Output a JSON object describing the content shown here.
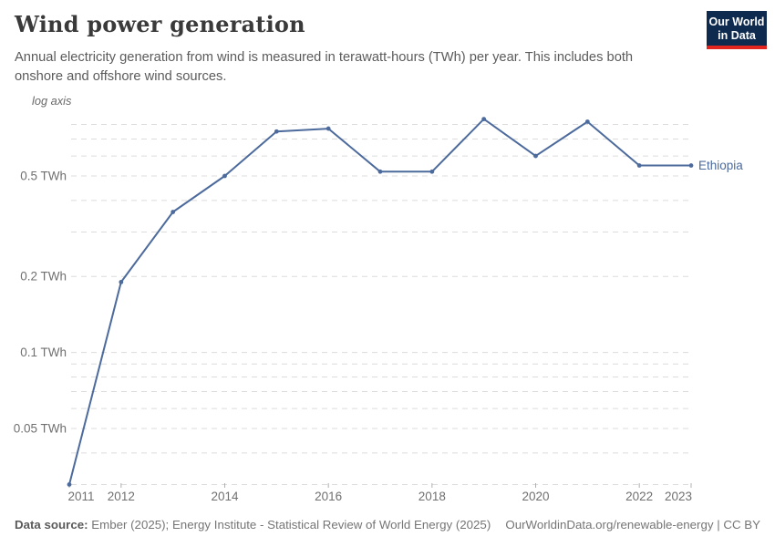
{
  "header": {
    "title": "Wind power generation",
    "subtitle": "Annual electricity generation from wind is measured in terawatt-hours (TWh) per year. This includes both onshore and offshore wind sources.",
    "logo": {
      "line1": "Our World",
      "line2": "in Data",
      "bg_color": "#0e2a4f",
      "accent_color": "#e2261f"
    }
  },
  "chart_data": {
    "type": "line",
    "title": "Wind power generation",
    "axis_note": "log axis",
    "unit": "TWh",
    "yscale": "log",
    "grid": true,
    "legend_position": "end-of-line",
    "x": [
      2011,
      2012,
      2013,
      2014,
      2015,
      2016,
      2017,
      2018,
      2019,
      2020,
      2021,
      2022,
      2023
    ],
    "series": [
      {
        "name": "Ethiopia",
        "color": "#4c6a9c",
        "values": [
          0.03,
          0.19,
          0.36,
          0.5,
          0.75,
          0.77,
          0.52,
          0.52,
          0.84,
          0.6,
          0.82,
          0.55,
          0.55
        ]
      }
    ],
    "ylim": [
      0.03,
      0.84
    ],
    "gridline_values": [
      0.03,
      0.04,
      0.05,
      0.06,
      0.07,
      0.08,
      0.09,
      0.1,
      0.2,
      0.3,
      0.4,
      0.5,
      0.6,
      0.7,
      0.8
    ],
    "ytick_labels": [
      {
        "value": 0.05,
        "label": "0.05 TWh"
      },
      {
        "value": 0.1,
        "label": "0.1 TWh"
      },
      {
        "value": 0.2,
        "label": "0.2 TWh"
      },
      {
        "value": 0.5,
        "label": "0.5 TWh"
      }
    ],
    "xtick_labels": [
      2011,
      2012,
      2014,
      2016,
      2018,
      2020,
      2022,
      2023
    ],
    "colors": {
      "gridline": "#dcdcdc",
      "tick": "#b0b0b0",
      "axis_text": "#707070"
    }
  },
  "footer": {
    "source_label": "Data source:",
    "source_text": " Ember (2025); Energy Institute - Statistical Review of World Energy (2025)",
    "link_text": "OurWorldinData.org/renewable-energy | CC BY"
  }
}
